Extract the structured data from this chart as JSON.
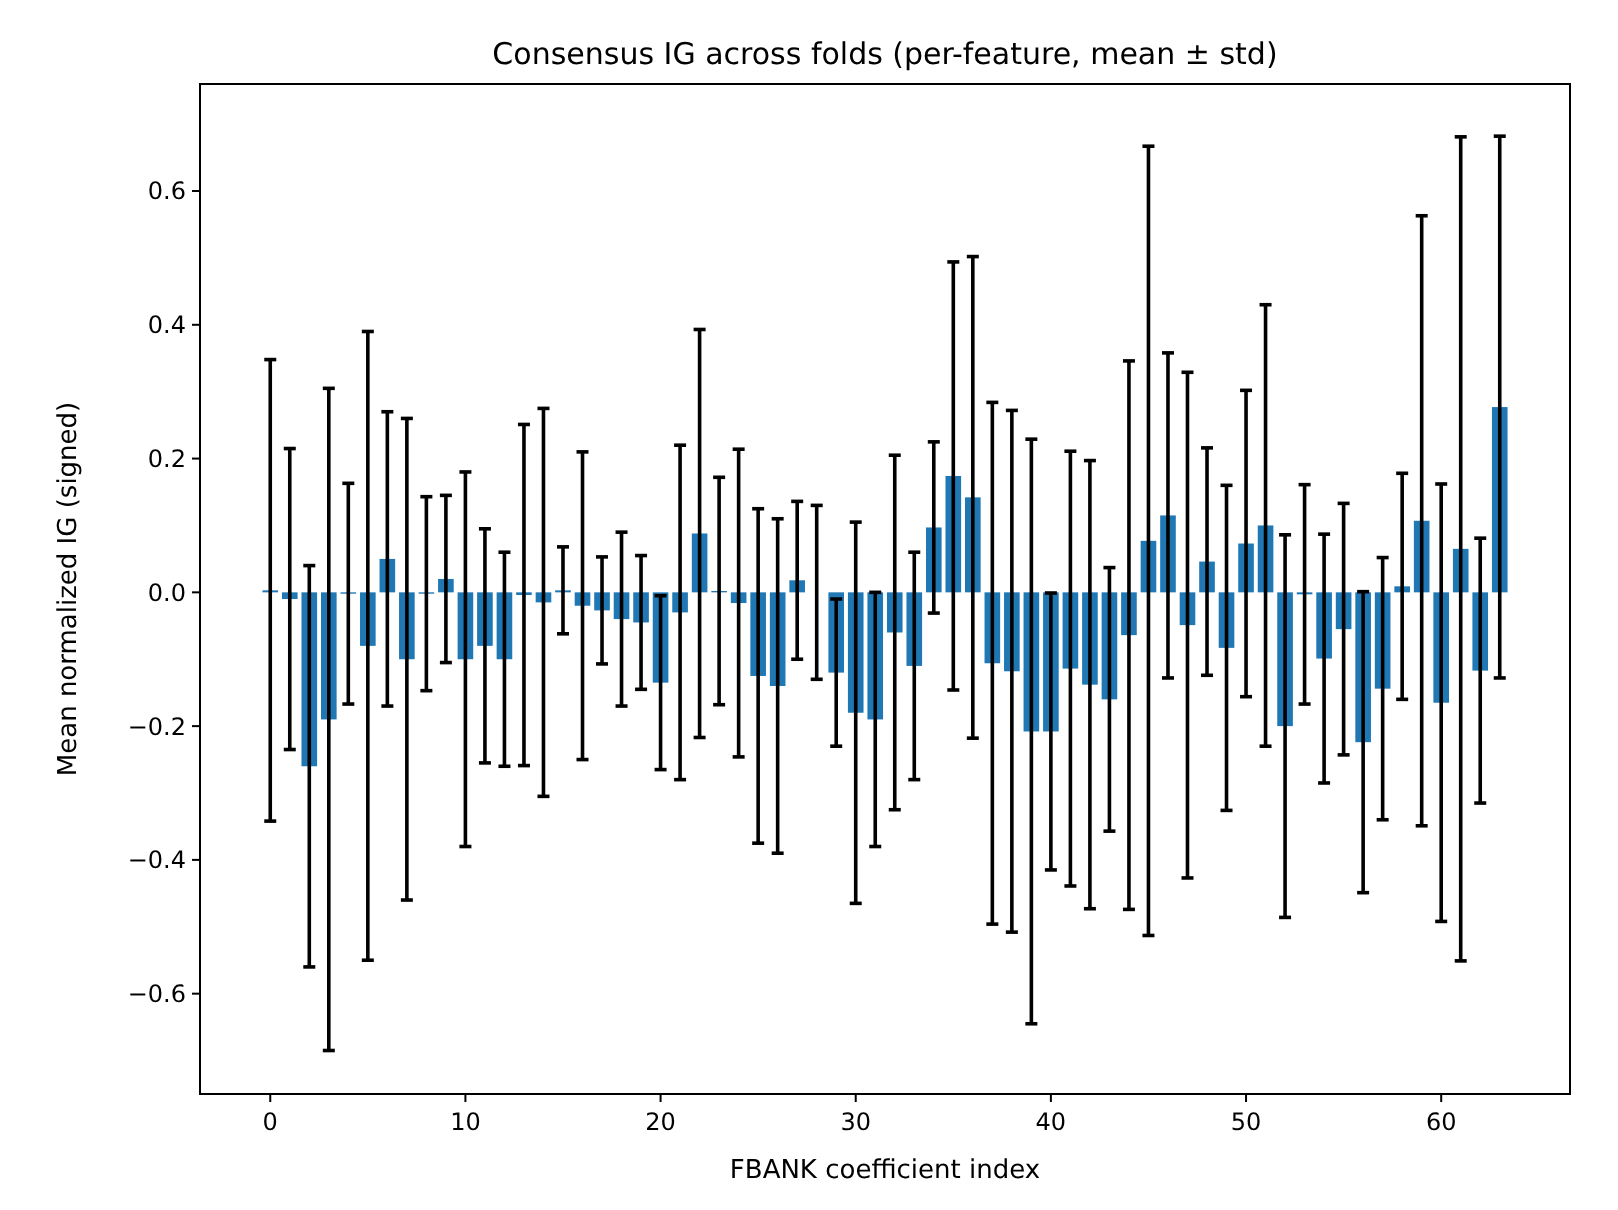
{
  "chart_data": {
    "type": "bar",
    "title": "Consensus IG across folds (per-feature, mean ± std)",
    "xlabel": "FBANK coefficient index",
    "ylabel": "Mean normalized IG (signed)",
    "x": [
      0,
      1,
      2,
      3,
      4,
      5,
      6,
      7,
      8,
      9,
      10,
      11,
      12,
      13,
      14,
      15,
      16,
      17,
      18,
      19,
      20,
      21,
      22,
      23,
      24,
      25,
      26,
      27,
      28,
      29,
      30,
      31,
      32,
      33,
      34,
      35,
      36,
      37,
      38,
      39,
      40,
      41,
      42,
      43,
      44,
      45,
      46,
      47,
      48,
      49,
      50,
      51,
      52,
      53,
      54,
      55,
      56,
      57,
      58,
      59,
      60,
      61,
      62,
      63
    ],
    "values": [
      0.003,
      -0.01,
      -0.26,
      -0.19,
      -0.002,
      -0.08,
      0.05,
      -0.1,
      -0.002,
      0.02,
      -0.1,
      -0.08,
      -0.1,
      -0.004,
      -0.015,
      0.003,
      -0.02,
      -0.027,
      -0.04,
      -0.045,
      -0.135,
      -0.03,
      0.088,
      0.002,
      -0.016,
      -0.125,
      -0.14,
      0.018,
      0,
      -0.12,
      -0.18,
      -0.19,
      -0.06,
      -0.11,
      0.097,
      0.174,
      0.142,
      -0.106,
      -0.118,
      -0.208,
      -0.208,
      -0.114,
      -0.138,
      -0.16,
      -0.064,
      0.077,
      0.115,
      -0.049,
      0.046,
      -0.083,
      0.073,
      0.1,
      -0.2,
      -0.003,
      -0.099,
      -0.055,
      -0.224,
      -0.144,
      0.009,
      0.107,
      -0.165,
      0.065,
      -0.117,
      0.277
    ],
    "errors": [
      0.345,
      0.225,
      0.3,
      0.495,
      0.165,
      0.47,
      0.22,
      0.36,
      0.145,
      0.125,
      0.28,
      0.175,
      0.16,
      0.255,
      0.29,
      0.065,
      0.23,
      0.08,
      0.13,
      0.1,
      0.13,
      0.25,
      0.305,
      0.17,
      0.23,
      0.25,
      0.25,
      0.118,
      0.13,
      0.11,
      0.285,
      0.19,
      0.265,
      0.17,
      0.128,
      0.32,
      0.36,
      0.39,
      0.39,
      0.437,
      0.207,
      0.325,
      0.335,
      0.197,
      0.41,
      0.59,
      0.243,
      0.378,
      0.17,
      0.243,
      0.229,
      0.33,
      0.286,
      0.164,
      0.186,
      0.188,
      0.225,
      0.196,
      0.169,
      0.456,
      0.327,
      0.616,
      0.198,
      0.405
    ],
    "color": "#1f77b4",
    "xlim": [
      -3.6,
      66.6
    ],
    "xticks": [
      0,
      10,
      20,
      30,
      40,
      50,
      60
    ],
    "ylim": [
      -0.75,
      0.76
    ],
    "yticks": [
      {
        "value": -0.6,
        "label": "−0.6"
      },
      {
        "value": -0.4,
        "label": "−0.4"
      },
      {
        "value": -0.2,
        "label": "−0.2"
      },
      {
        "value": 0,
        "label": "0.0"
      },
      {
        "value": 0.2,
        "label": "0.2"
      },
      {
        "value": 0.4,
        "label": "0.4"
      },
      {
        "value": 0.6,
        "label": "0.6"
      }
    ]
  }
}
